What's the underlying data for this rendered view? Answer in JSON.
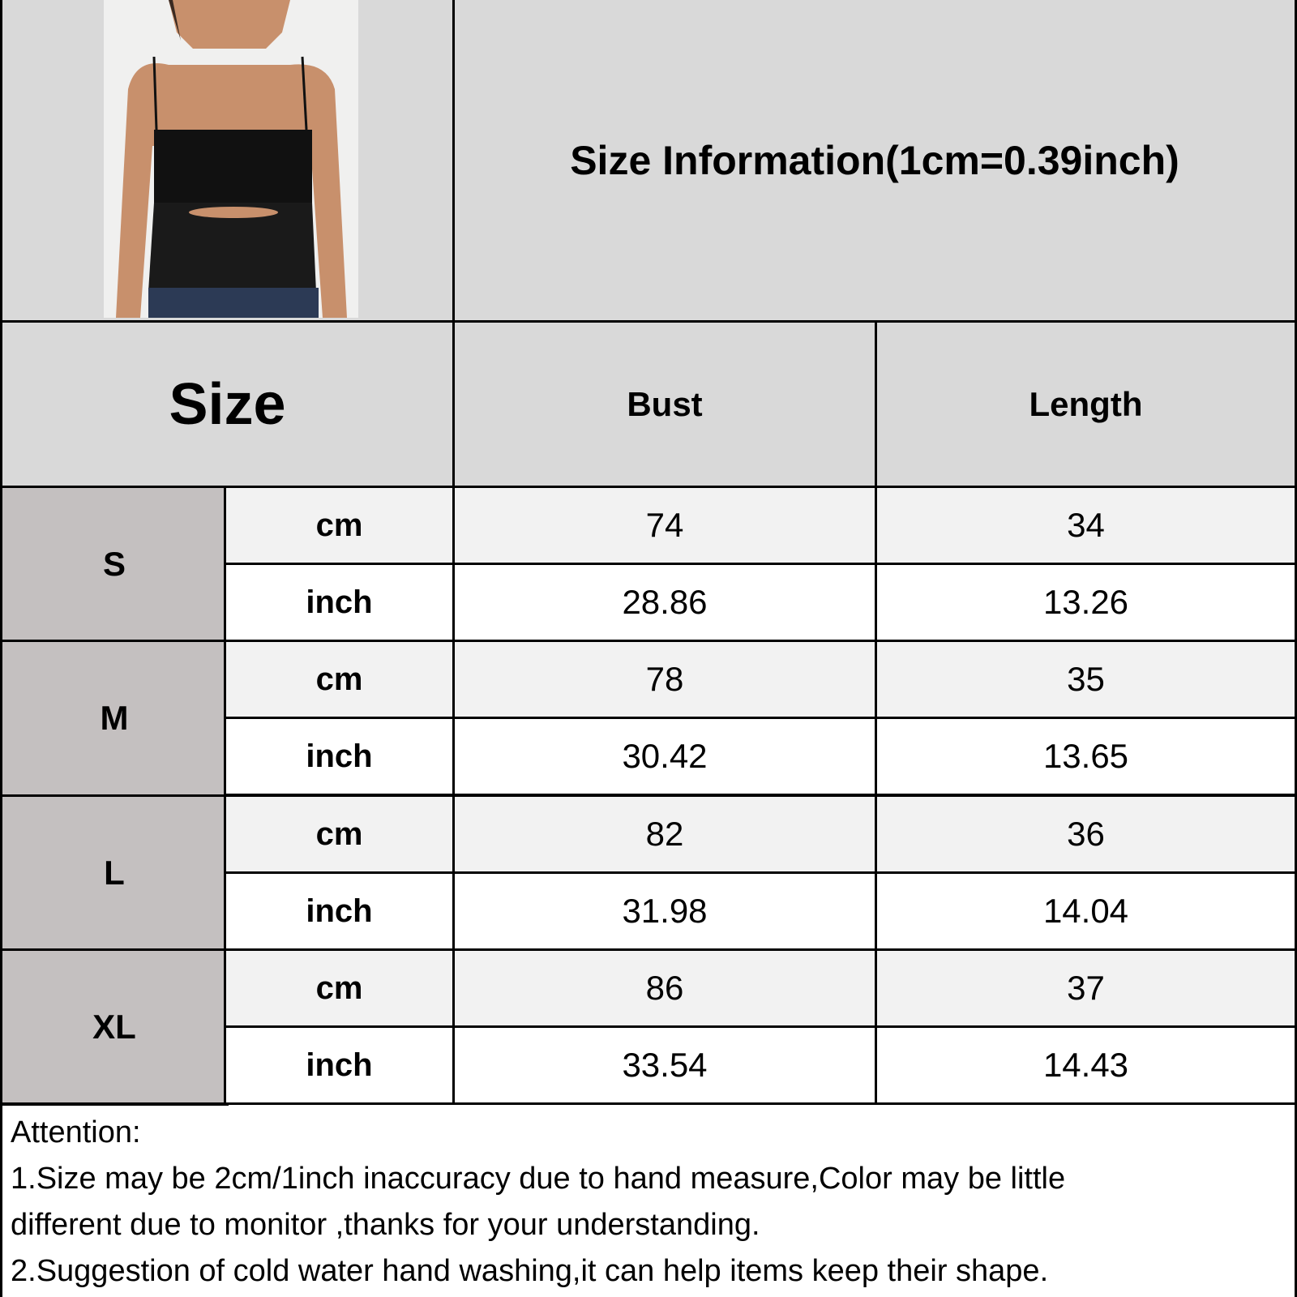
{
  "title": "Size Information(1cm=0.39inch)",
  "headers": {
    "size": "Size",
    "bust": "Bust",
    "length": "Length"
  },
  "rows": [
    {
      "size": "S",
      "cm": {
        "unit": "cm",
        "bust": "74",
        "length": "34"
      },
      "inch": {
        "unit": "inch",
        "bust": "28.86",
        "length": "13.26"
      }
    },
    {
      "size": "M",
      "cm": {
        "unit": "cm",
        "bust": "78",
        "length": "35"
      },
      "inch": {
        "unit": "inch",
        "bust": "30.42",
        "length": "13.65"
      }
    },
    {
      "size": "L",
      "cm": {
        "unit": "cm",
        "bust": "82",
        "length": "36"
      },
      "inch": {
        "unit": "inch",
        "bust": "31.98",
        "length": "14.04"
      }
    },
    {
      "size": "XL",
      "cm": {
        "unit": "cm",
        "bust": "86",
        "length": "37"
      },
      "inch": {
        "unit": "inch",
        "bust": "33.54",
        "length": "14.43"
      }
    }
  ],
  "notes": {
    "heading": "Attention:",
    "line1": "1.Size may be 2cm/1inch inaccuracy due to hand measure,Color may be little",
    "line2": "different due to monitor ,thanks for your understanding.",
    "line3": "2.Suggestion of cold water hand washing,it can help items keep their shape."
  },
  "colors": {
    "header": "#d9d9d9",
    "size_col": "#c4c0c0",
    "cm_row": "#f2f2f2",
    "inch_row": "#ffffff",
    "border": "#000000"
  }
}
